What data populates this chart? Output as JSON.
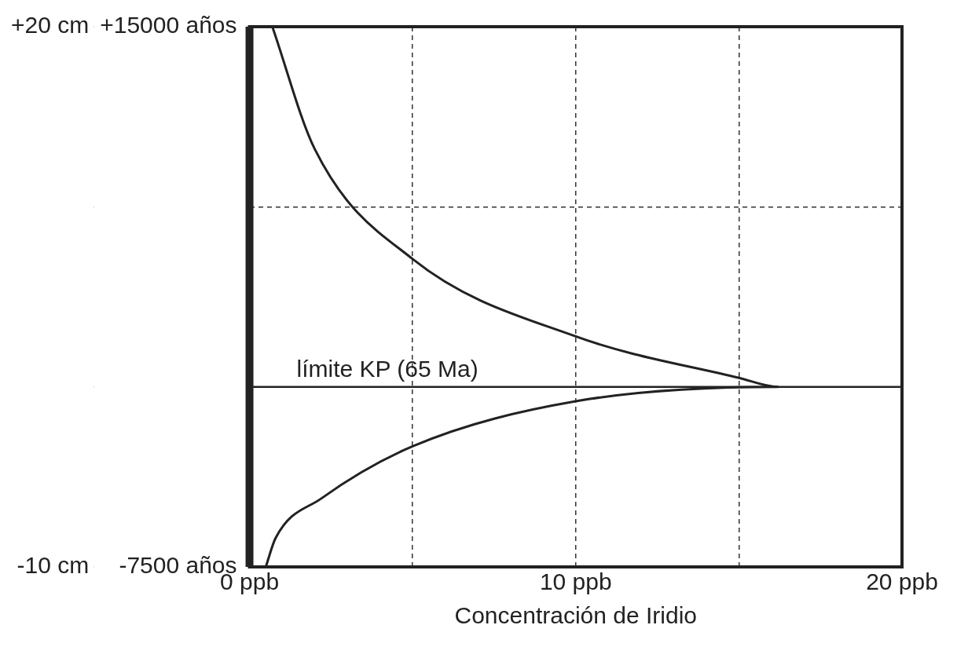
{
  "chart_data": {
    "type": "line",
    "xlabel": "Concentración de Iridio",
    "xlim": [
      0,
      20
    ],
    "ylim": [
      -10,
      20
    ],
    "y2lim": [
      -7500,
      15000
    ],
    "xticks": [
      {
        "value": 0,
        "label": "0 ppb"
      },
      {
        "value": 5,
        "label": null
      },
      {
        "value": 10,
        "label": "10 ppb"
      },
      {
        "value": 15,
        "label": null
      },
      {
        "value": 20,
        "label": "20 ppb"
      }
    ],
    "yticks": [
      {
        "value": -10,
        "label": "-10 cm"
      },
      {
        "value": 0,
        "label": null
      },
      {
        "value": 10,
        "label": null
      },
      {
        "value": 20,
        "label": "+20 cm"
      }
    ],
    "y2ticks": [
      {
        "value": -7500,
        "label": "-7500 años"
      },
      {
        "value": 15000,
        "label": "+15000 años"
      }
    ],
    "series": [
      {
        "color": "#222222",
        "x": [
          0.5,
          0.8,
          2.2,
          5,
          10,
          16.2,
          15,
          10,
          5,
          2,
          0.7
        ],
        "values": [
          -10,
          -8.4,
          -6.2,
          -3.3,
          -0.8,
          0,
          0.5,
          2.8,
          7.1,
          13.2,
          20
        ]
      }
    ],
    "ref_lines": [
      {
        "axis": "y",
        "value": 0,
        "label": "límite KP (65 Ma)",
        "color": "#222222",
        "line_style": "solid"
      }
    ],
    "grid": true,
    "legend": false,
    "marker": "none",
    "line_style": "solid"
  }
}
